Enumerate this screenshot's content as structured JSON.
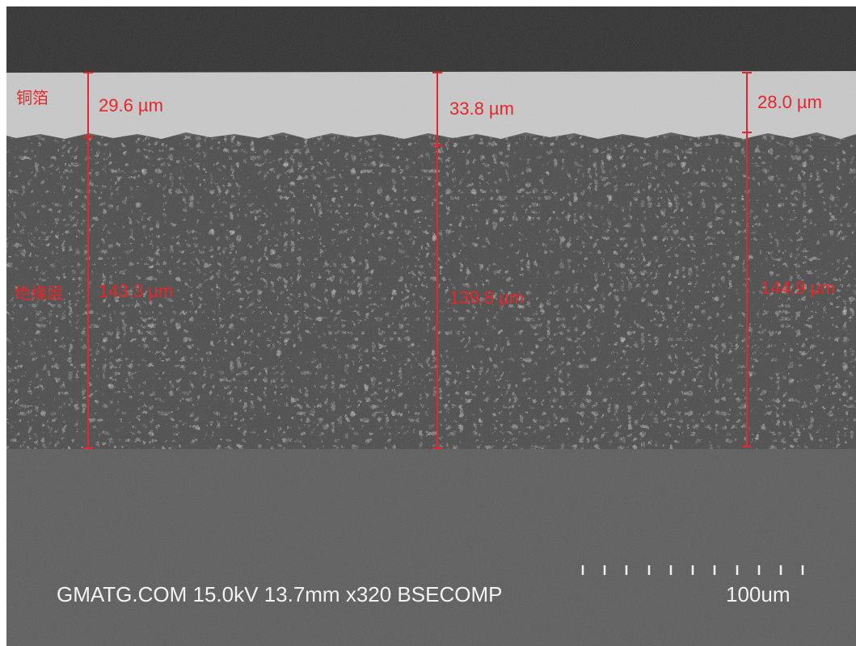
{
  "labels": {
    "copper": "铜箔",
    "insulation": "绝缘层"
  },
  "measurements": [
    {
      "copper": "29.6 µm",
      "insulation": "143.3 µm"
    },
    {
      "copper": "33.8 µm",
      "insulation": "139.8 µm"
    },
    {
      "copper": "28.0 µm",
      "insulation": "144.9 µm"
    }
  ],
  "info": "GMATG.COM 15.0kV 13.7mm x320 BSECOMP",
  "scale_bar": "100um"
}
